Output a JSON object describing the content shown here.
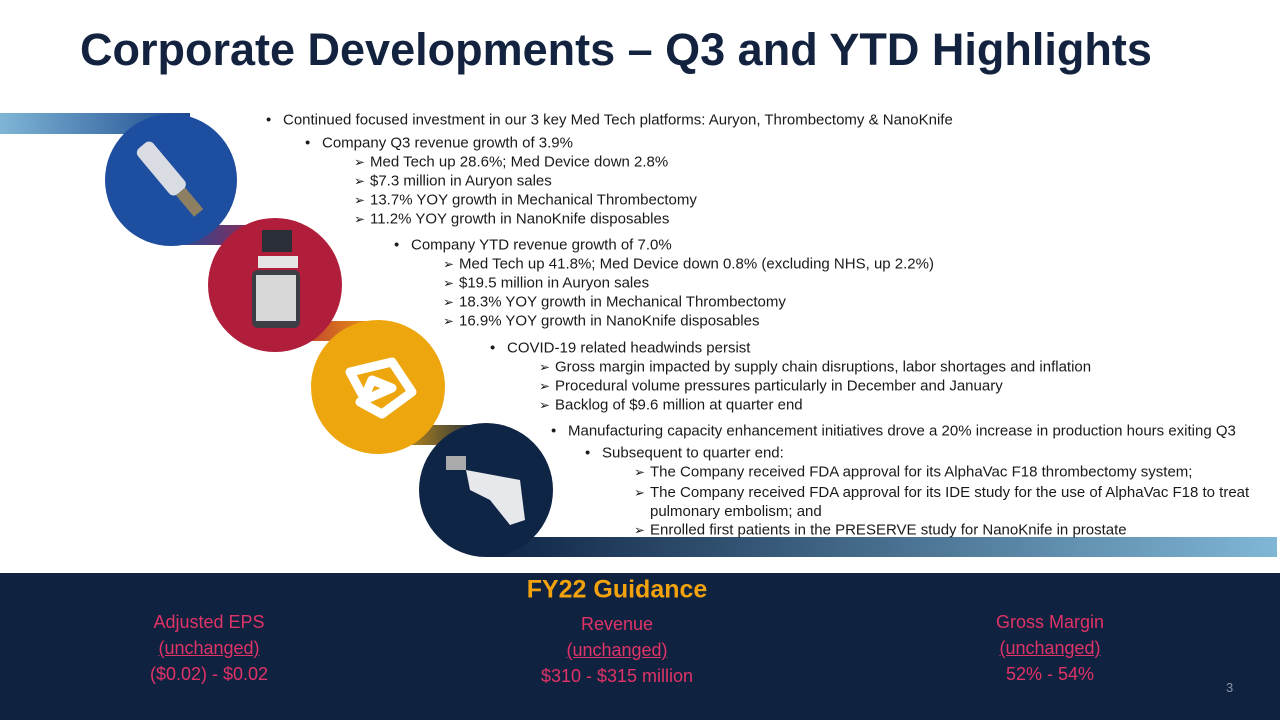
{
  "title": "Corporate Developments – Q3 and YTD Highlights",
  "bullets": [
    "Continued focused investment in our 3 key Med Tech platforms: Auryon, Thrombectomy & NanoKnife",
    "Company Q3 revenue growth of 3.9%",
    "Med Tech up 28.6%; Med Device down 2.8%",
    "$7.3 million in Auryon sales",
    "13.7% YOY growth in Mechanical Thrombectomy",
    "11.2% YOY growth in NanoKnife disposables",
    "Company YTD revenue growth of 7.0%",
    "Med Tech up 41.8%; Med Device down 0.8% (excluding NHS, up 2.2%)",
    "$19.5 million in Auryon sales",
    "18.3% YOY growth in Mechanical Thrombectomy",
    "16.9% YOY growth in NanoKnife disposables",
    "COVID-19 related headwinds persist",
    "Gross margin impacted by supply chain disruptions, labor shortages and inflation",
    "Procedural volume pressures particularly in December and January",
    "Backlog of $9.6 million at quarter end",
    "Manufacturing capacity enhancement initiatives drove a 20% increase in production hours exiting Q3",
    "Subsequent to quarter end:",
    "The Company received FDA approval for its AlphaVac F18 thrombectomy system;",
    "The Company received FDA approval for its IDE study for the use of AlphaVac F18 to treat pulmonary embolism; and",
    "Enrolled first patients in the PRESERVE study for NanoKnife in prostate"
  ],
  "guidance": {
    "title": "FY22 Guidance",
    "items": [
      {
        "label": "Adjusted EPS",
        "status": "(unchanged)",
        "value": "($0.02) - $0.02"
      },
      {
        "label": "Revenue",
        "status": "(unchanged)",
        "value": "$310 - $315 million"
      },
      {
        "label": "Gross Margin",
        "status": "(unchanged)",
        "value": "52% - 54%"
      }
    ]
  },
  "page_number": "3"
}
